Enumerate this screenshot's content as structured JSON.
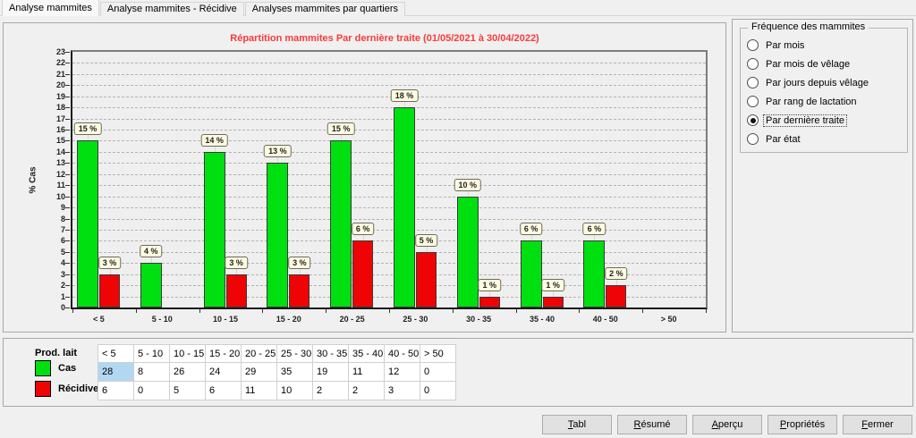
{
  "tabs": [
    {
      "label": "Analyse mammites",
      "active": true
    },
    {
      "label": "Analyse mammites - Récidive",
      "active": false
    },
    {
      "label": "Analyses mammites par quartiers",
      "active": false
    }
  ],
  "chart_data": {
    "type": "bar",
    "title": "Répartition mammites Par dernière traite (01/05/2021 à 30/04/2022)",
    "ylabel": "% Cas",
    "xlabel": "",
    "ylim": [
      0,
      23
    ],
    "ytick_step": 1,
    "grid": "horizontal-dashed",
    "legend_position": "bottom-left-panel",
    "categories": [
      "< 5",
      "5 - 10",
      "10 - 15",
      "15 - 20",
      "20 - 25",
      "25 - 30",
      "30 - 35",
      "35 - 40",
      "40 - 50",
      "> 50"
    ],
    "series": [
      {
        "name": "Cas",
        "color": "#00df10",
        "percent_values": [
          15,
          4,
          14,
          13,
          15,
          18,
          10,
          6,
          6,
          0
        ],
        "bar_labels": [
          "15 %",
          "4 %",
          "14 %",
          "13 %",
          "15 %",
          "18 %",
          "10 %",
          "6 %",
          "6 %",
          ""
        ],
        "counts": [
          28,
          8,
          26,
          24,
          29,
          35,
          19,
          11,
          12,
          0
        ]
      },
      {
        "name": "Récidives",
        "color": "#ee0404",
        "percent_values": [
          3,
          0,
          3,
          3,
          6,
          5,
          1,
          1,
          2,
          0
        ],
        "bar_labels": [
          "3 %",
          "",
          "3 %",
          "3 %",
          "6 %",
          "5 %",
          "1 %",
          "1 %",
          "2 %",
          ""
        ],
        "counts": [
          6,
          0,
          5,
          6,
          11,
          10,
          2,
          2,
          3,
          0
        ]
      }
    ]
  },
  "frequency_panel": {
    "title": "Fréquence des mammites",
    "options": [
      {
        "label": "Par mois",
        "selected": false
      },
      {
        "label": "Par mois de vêlage",
        "selected": false
      },
      {
        "label": "Par jours depuis vêlage",
        "selected": false
      },
      {
        "label": "Par rang de lactation",
        "selected": false
      },
      {
        "label": "Par dernière traite",
        "selected": true
      },
      {
        "label": "Par état",
        "selected": false
      }
    ]
  },
  "bottom": {
    "legend_title": "Prod. lait",
    "legend": [
      {
        "label": "Cas",
        "color": "#00df10"
      },
      {
        "label": "Récidives",
        "color": "#ee0404"
      }
    ],
    "table": {
      "headers": [
        "< 5",
        "5 - 10",
        "10 - 15",
        "15 - 20",
        "20 - 25",
        "25 - 30",
        "30 - 35",
        "35 - 40",
        "40 - 50",
        "> 50"
      ],
      "rows": [
        [
          "28",
          "8",
          "26",
          "24",
          "29",
          "35",
          "19",
          "11",
          "12",
          "0"
        ],
        [
          "6",
          "0",
          "5",
          "6",
          "11",
          "10",
          "2",
          "2",
          "3",
          "0"
        ]
      ],
      "selected_cell": {
        "row": 0,
        "col": 0
      }
    }
  },
  "buttons": [
    {
      "label": "Tabl",
      "underline": "T"
    },
    {
      "label": "Résumé",
      "underline": "R"
    },
    {
      "label": "Aperçu",
      "underline": "A"
    },
    {
      "label": "Propriétés",
      "underline": "P"
    },
    {
      "label": "Fermer",
      "underline": "F"
    }
  ],
  "colors": {
    "cas_green": "#00df10",
    "recidive_red": "#ee0404",
    "title_red": "#f93b3b",
    "bar_label_bg": "#fffbe1",
    "selected_cell_blue": "#b2d7f3",
    "panel_gray": "#f0f0f0"
  }
}
